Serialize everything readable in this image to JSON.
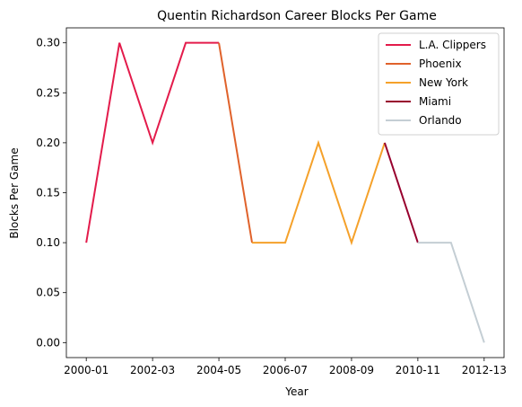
{
  "chart_data": {
    "type": "line",
    "title": "Quentin Richardson Career Blocks Per Game",
    "xlabel": "Year",
    "ylabel": "Blocks Per Game",
    "x_ticks": [
      "2000-01",
      "2002-03",
      "2004-05",
      "2006-07",
      "2008-09",
      "2010-11",
      "2012-13"
    ],
    "y_ticks": [
      "0.00",
      "0.05",
      "0.10",
      "0.15",
      "0.20",
      "0.25",
      "0.30"
    ],
    "ylim": [
      -0.015,
      0.315
    ],
    "xlim": [
      "2000-01",
      "2012-13"
    ],
    "legend_position": "top-right",
    "grid": false,
    "series": [
      {
        "name": "L.A. Clippers",
        "color": "#e31b4b",
        "x": [
          "2000-01",
          "2001-02",
          "2002-03",
          "2003-04",
          "2004-05"
        ],
        "values": [
          0.1,
          0.3,
          0.2,
          0.3,
          0.3
        ]
      },
      {
        "name": "Phoenix",
        "color": "#e0622b",
        "x": [
          "2004-05",
          "2005-06"
        ],
        "values": [
          0.3,
          0.1
        ]
      },
      {
        "name": "New York",
        "color": "#f5a12a",
        "x": [
          "2005-06",
          "2006-07",
          "2007-08",
          "2008-09",
          "2009-10"
        ],
        "values": [
          0.1,
          0.1,
          0.2,
          0.1,
          0.2
        ]
      },
      {
        "name": "Miami",
        "color": "#98002e",
        "x": [
          "2009-10",
          "2010-11"
        ],
        "values": [
          0.2,
          0.1
        ]
      },
      {
        "name": "Orlando",
        "color": "#c4ced4",
        "x": [
          "2010-11",
          "2011-12",
          "2012-13"
        ],
        "values": [
          0.1,
          0.1,
          0.0
        ]
      }
    ]
  }
}
